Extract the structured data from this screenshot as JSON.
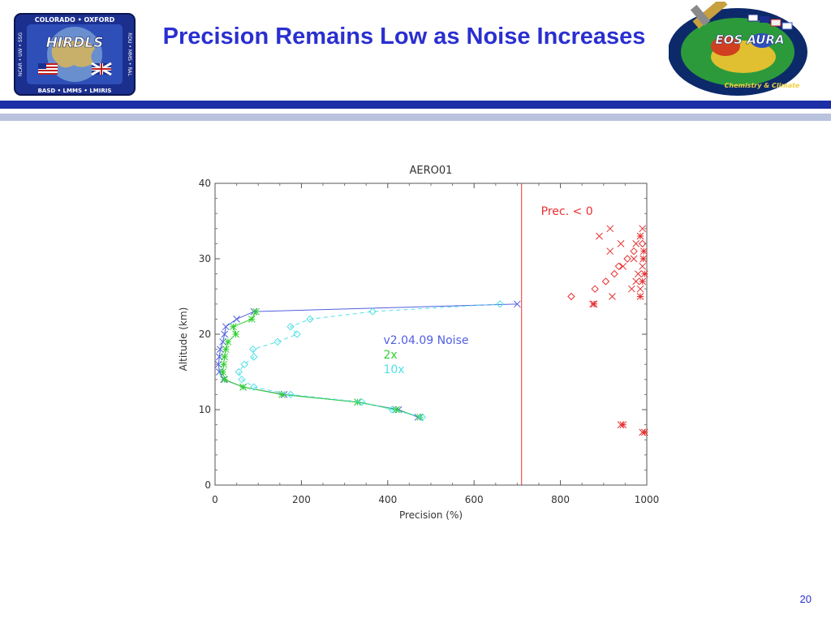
{
  "slide": {
    "title": "Precision Remains Low as Noise Increases",
    "page_number": "20"
  },
  "logos": {
    "left": {
      "name": "HIRDLS",
      "top_text": "COLORADO • OXFORD",
      "bottom_text": "BASD • LMMS • LMIRIS",
      "left_text": "NCAR • UW • SSG",
      "right_text": "RDU • MMS • RAL"
    },
    "right": {
      "name": "EOS AURA",
      "sub_text": "Chemistry & Climate"
    }
  },
  "colors": {
    "title": "#2a2fd0",
    "band_dark": "#1c2fa6",
    "band_light": "#b9c3dd",
    "series_v2": "#5060e0",
    "series_2x": "#30d030",
    "series_10x": "#50e0e8",
    "negative": "#e83030"
  },
  "chart_data": {
    "type": "line",
    "title": "AERO01",
    "xlabel": "Precision (%)",
    "ylabel": "Altitude (km)",
    "xlim": [
      0,
      1000
    ],
    "ylim": [
      0,
      40
    ],
    "xticks": [
      0,
      200,
      400,
      600,
      800,
      1000
    ],
    "yticks": [
      0,
      10,
      20,
      30,
      40
    ],
    "grid": false,
    "vline": {
      "x": 710,
      "color": "#e83030"
    },
    "annotation": "Prec. < 0",
    "legend": [
      "v2.04.09  Noise",
      "2x",
      "10x"
    ],
    "series": [
      {
        "name": "v2.04.09  Noise",
        "color": "#5060e0",
        "marker": "x",
        "line": "solid",
        "points": [
          [
            470,
            9
          ],
          [
            425,
            10
          ],
          [
            330,
            11
          ],
          [
            160,
            12
          ],
          [
            65,
            13
          ],
          [
            20,
            14
          ],
          [
            10,
            15
          ],
          [
            8,
            16
          ],
          [
            10,
            17
          ],
          [
            12,
            18
          ],
          [
            18,
            19
          ],
          [
            22,
            20
          ],
          [
            25,
            21
          ],
          [
            50,
            22
          ],
          [
            90,
            23
          ],
          [
            700,
            24
          ]
        ]
      },
      {
        "name": "2x",
        "color": "#30d030",
        "marker": "asterisk",
        "line": "solid",
        "points": [
          [
            475,
            9
          ],
          [
            420,
            10
          ],
          [
            330,
            11
          ],
          [
            155,
            12
          ],
          [
            65,
            13
          ],
          [
            22,
            14
          ],
          [
            18,
            15
          ],
          [
            20,
            16
          ],
          [
            22,
            17
          ],
          [
            25,
            18
          ],
          [
            30,
            19
          ],
          [
            48,
            20
          ],
          [
            42,
            21
          ],
          [
            85,
            22
          ],
          [
            95,
            23
          ]
        ]
      },
      {
        "name": "10x",
        "color": "#50e0e8",
        "marker": "diamond",
        "line": "dashed",
        "points": [
          [
            480,
            9
          ],
          [
            410,
            10
          ],
          [
            340,
            11
          ],
          [
            175,
            12
          ],
          [
            90,
            13
          ],
          [
            62,
            14
          ],
          [
            55,
            15
          ],
          [
            68,
            16
          ],
          [
            90,
            17
          ],
          [
            88,
            18
          ],
          [
            145,
            19
          ],
          [
            190,
            20
          ],
          [
            175,
            21
          ],
          [
            220,
            22
          ],
          [
            365,
            23
          ],
          [
            660,
            24
          ]
        ]
      },
      {
        "name": "",
        "color": "#e83030",
        "marker": "x",
        "line": "none",
        "points": [
          [
            875,
            24
          ],
          [
            920,
            25
          ],
          [
            965,
            26
          ],
          [
            975,
            27
          ],
          [
            980,
            28
          ],
          [
            945,
            29
          ],
          [
            970,
            30
          ],
          [
            915,
            31
          ],
          [
            940,
            32
          ],
          [
            890,
            33
          ],
          [
            915,
            34
          ],
          [
            985,
            26
          ],
          [
            990,
            29
          ],
          [
            975,
            32
          ],
          [
            990,
            34
          ],
          [
            940,
            8
          ],
          [
            990,
            7
          ]
        ]
      },
      {
        "name": "",
        "color": "#e83030",
        "marker": "diamond",
        "line": "none",
        "points": [
          [
            825,
            25
          ],
          [
            880,
            26
          ],
          [
            905,
            27
          ],
          [
            925,
            28
          ],
          [
            935,
            29
          ],
          [
            955,
            30
          ],
          [
            970,
            31
          ],
          [
            990,
            32
          ]
        ]
      },
      {
        "name": "",
        "color": "#e83030",
        "marker": "asterisk",
        "line": "none",
        "points": [
          [
            878,
            24
          ],
          [
            985,
            25
          ],
          [
            990,
            27
          ],
          [
            995,
            28
          ],
          [
            992,
            30
          ],
          [
            985,
            33
          ],
          [
            993,
            31
          ],
          [
            945,
            8
          ],
          [
            995,
            7
          ]
        ]
      }
    ]
  }
}
